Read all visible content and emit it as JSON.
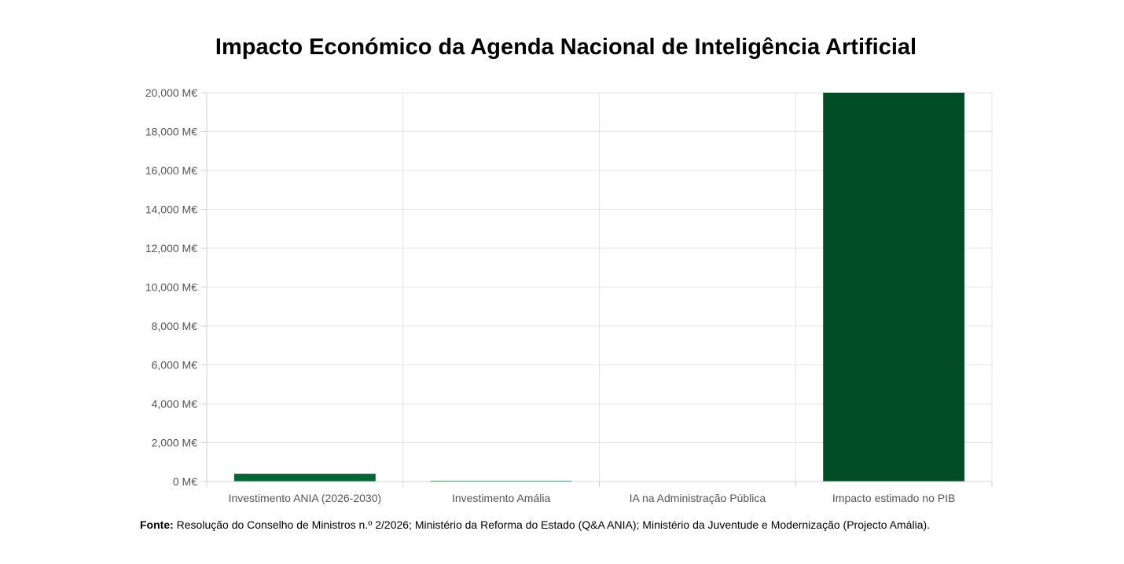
{
  "chart_data": {
    "type": "bar",
    "title": "Impacto Económico da Agenda Nacional de Inteligência Artificial",
    "categories": [
      "Investimento ANIA (2026-2030)",
      "Investimento Amália",
      "IA na Administração Pública",
      "Impacto estimado no PIB"
    ],
    "values": [
      400,
      5.5,
      0,
      20000
    ],
    "colors": [
      "#006633",
      "#006633",
      "#006633",
      "#004d26"
    ],
    "ylim": [
      0,
      20000
    ],
    "yticks": [
      "0 M€",
      "2,000 M€",
      "4,000 M€",
      "6,000 M€",
      "8,000 M€",
      "10,000 M€",
      "12,000 M€",
      "14,000 M€",
      "16,000 M€",
      "18,000 M€",
      "20,000 M€"
    ],
    "grid": true,
    "legend": "none"
  },
  "footer": {
    "source_label": "Fonte:",
    "source_text": "Resolução do Conselho de Ministros n.º 2/2026; Ministério da Reforma do Estado (Q&A ANIA); Ministério da Juventude e Modernização (Projecto Amália)."
  }
}
